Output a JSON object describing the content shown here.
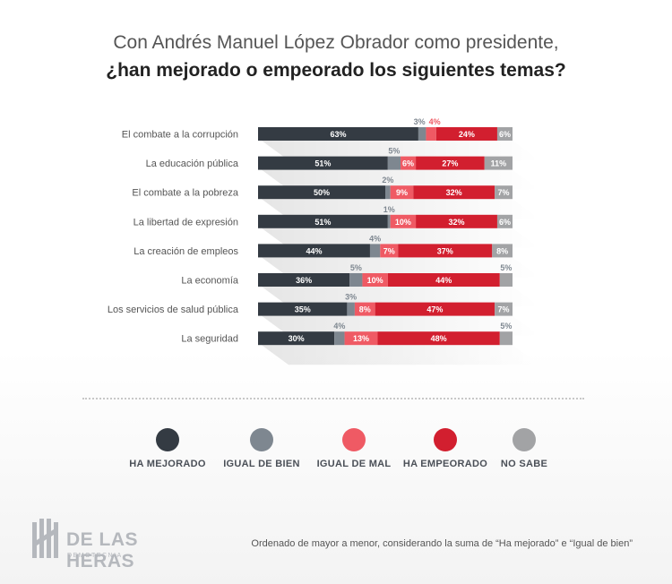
{
  "title": {
    "line1": "Con Andrés Manuel López Obrador como presidente,",
    "line2": "¿han mejorado o empeorado los siguientes temas?"
  },
  "colors": {
    "ha_mejorado": "#343b43",
    "igual_de_bien": "#7e8790",
    "igual_de_mal": "#ef5a64",
    "ha_empeorado": "#d21f2f",
    "no_sabe": "#a2a3a5"
  },
  "legend": [
    {
      "key": "ha_mejorado",
      "label": "HA MEJORADO"
    },
    {
      "key": "igual_de_bien",
      "label": "IGUAL DE BIEN"
    },
    {
      "key": "igual_de_mal",
      "label": "IGUAL DE MAL"
    },
    {
      "key": "ha_empeorado",
      "label": "HA EMPEORADO"
    },
    {
      "key": "no_sabe",
      "label": "NO SABE"
    }
  ],
  "chart_data": {
    "type": "bar",
    "orientation": "horizontal",
    "stacked": true,
    "unit": "%",
    "categories": [
      "El combate a la corrupción",
      "La educación pública",
      "El combate a la pobreza",
      "La libertad de expresión",
      "La creación de empleos",
      "La economía",
      "Los servicios de salud pública",
      "La seguridad"
    ],
    "series": [
      {
        "name": "HA MEJORADO",
        "key": "ha_mejorado",
        "values": [
          63,
          51,
          50,
          51,
          44,
          36,
          35,
          30
        ]
      },
      {
        "name": "IGUAL DE BIEN",
        "key": "igual_de_bien",
        "values": [
          3,
          5,
          2,
          1,
          4,
          5,
          3,
          4
        ]
      },
      {
        "name": "IGUAL DE MAL",
        "key": "igual_de_mal",
        "values": [
          4,
          6,
          9,
          10,
          7,
          10,
          8,
          13
        ]
      },
      {
        "name": "HA EMPEORADO",
        "key": "ha_empeorado",
        "values": [
          24,
          27,
          32,
          32,
          37,
          44,
          47,
          48
        ]
      },
      {
        "name": "NO SABE",
        "key": "no_sabe",
        "values": [
          6,
          11,
          7,
          6,
          8,
          5,
          7,
          5
        ]
      }
    ],
    "xlim": [
      0,
      100
    ],
    "grid": false,
    "legend_position": "bottom"
  },
  "logo": {
    "name": "DE LAS HERAS",
    "sub": "DEMOTECNIA"
  },
  "note": "Ordenado de mayor a menor, considerando la suma de “Ha mejorado” e “Igual de bien”"
}
